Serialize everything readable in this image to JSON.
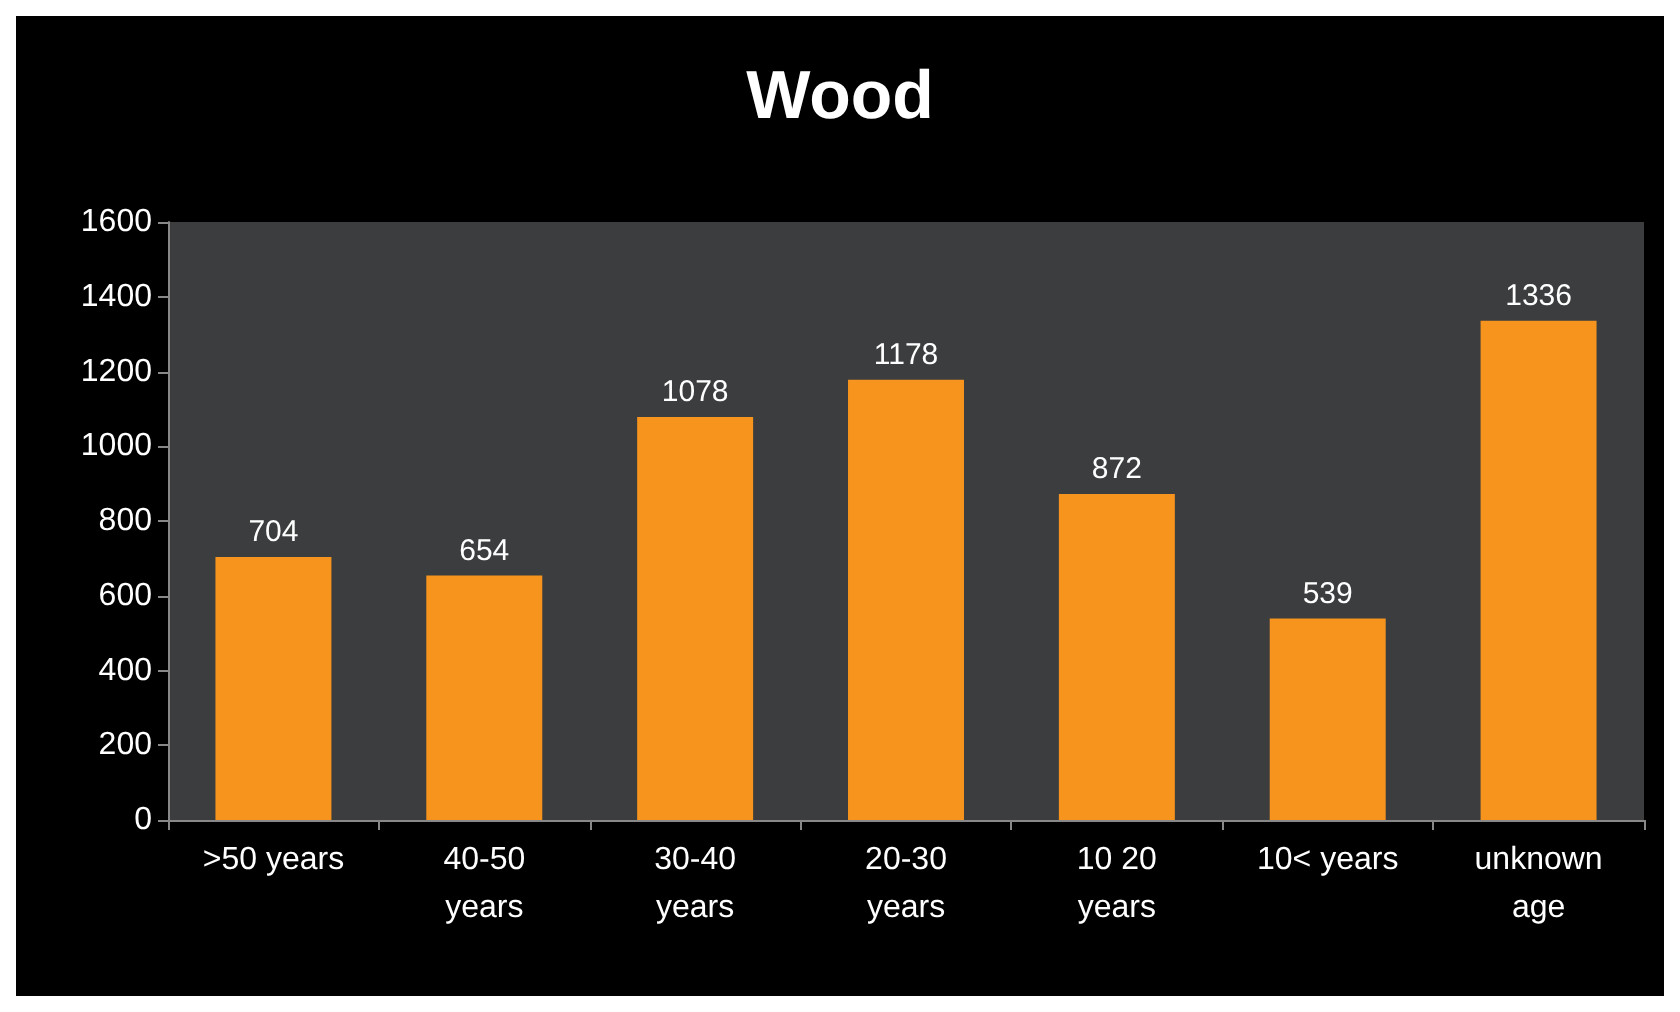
{
  "chart_data": {
    "type": "bar",
    "title": "Wood",
    "categories": [
      ">50 years",
      "40-50\nyears",
      "30-40\nyears",
      "20-30\nyears",
      "10 20\nyears",
      "10< years",
      "unknown\nage"
    ],
    "values": [
      704,
      654,
      1078,
      1178,
      872,
      539,
      1336
    ],
    "color": "#f7941d",
    "ylim": [
      0,
      1600
    ],
    "yticks": [
      0,
      200,
      400,
      600,
      800,
      1000,
      1200,
      1400,
      1600
    ],
    "grid": false,
    "data_labels": true
  }
}
